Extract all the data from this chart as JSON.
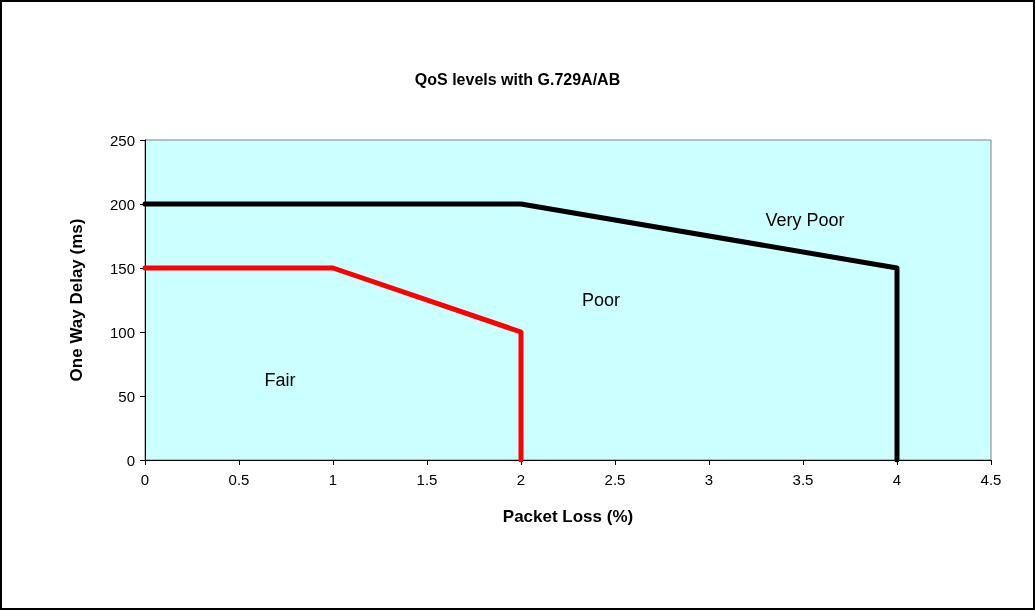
{
  "chart_data": {
    "type": "line",
    "title": "QoS levels with G.729A/AB",
    "xlabel": "Packet Loss (%)",
    "ylabel": "One Way Delay (ms)",
    "series": [
      {
        "color": "#000000",
        "x": [
          0,
          2,
          4,
          4
        ],
        "values": [
          200,
          200,
          150,
          0
        ]
      },
      {
        "color": "#ff0000",
        "x": [
          0,
          1,
          2,
          2
        ],
        "values": [
          150,
          150,
          100,
          0
        ]
      }
    ],
    "xlim": [
      0,
      4.5
    ],
    "xticks": [
      0,
      0.5,
      1,
      1.5,
      2,
      2.5,
      3,
      3.5,
      4,
      4.5
    ],
    "ylim": [
      0,
      250
    ],
    "yticks": [
      0,
      50,
      100,
      150,
      200,
      250
    ],
    "grid": false,
    "marker": "none",
    "line_style": "solid",
    "annotations": [
      "Very Poor",
      "Poor",
      "Fair"
    ]
  }
}
